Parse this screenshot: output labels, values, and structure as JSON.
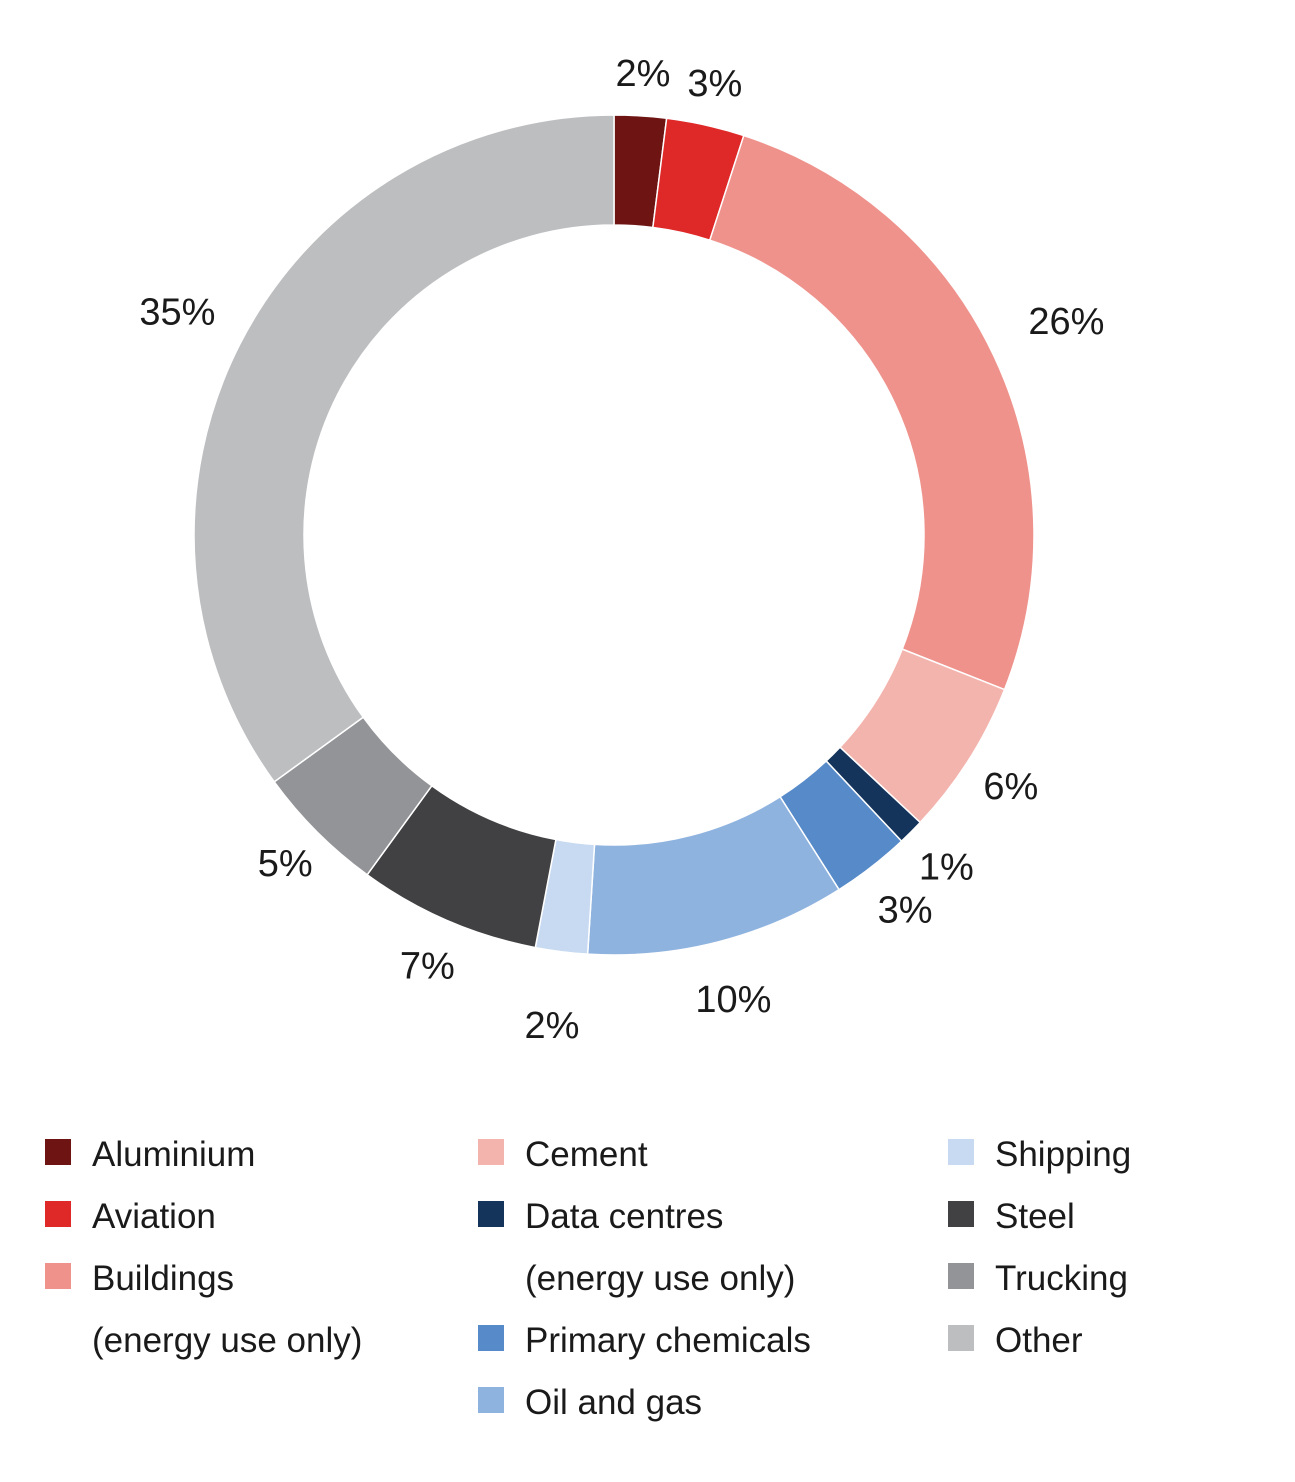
{
  "chart_data": {
    "type": "pie",
    "subtype": "donut",
    "title": "",
    "series": [
      {
        "name": "Aluminium",
        "value": 2,
        "label": "2%",
        "color": "#6e1413"
      },
      {
        "name": "Aviation",
        "value": 3,
        "label": "3%",
        "color": "#df2828"
      },
      {
        "name": "Buildings (energy use only)",
        "value": 26,
        "label": "26%",
        "color": "#ef928c"
      },
      {
        "name": "Cement",
        "value": 6,
        "label": "6%",
        "color": "#f4b4ae"
      },
      {
        "name": "Data centres (energy use only)",
        "value": 1,
        "label": "1%",
        "color": "#14345c"
      },
      {
        "name": "Primary chemicals",
        "value": 3,
        "label": "3%",
        "color": "#568ac8"
      },
      {
        "name": "Oil and gas",
        "value": 10,
        "label": "10%",
        "color": "#8fb3df"
      },
      {
        "name": "Shipping",
        "value": 2,
        "label": "2%",
        "color": "#c7daf1"
      },
      {
        "name": "Steel",
        "value": 7,
        "label": "7%",
        "color": "#414143"
      },
      {
        "name": "Trucking",
        "value": 5,
        "label": "5%",
        "color": "#939497"
      },
      {
        "name": "Other",
        "value": 35,
        "label": "35%",
        "color": "#bdbec0"
      }
    ],
    "legend_position": "bottom"
  },
  "legend": {
    "columns": [
      [
        {
          "lines": [
            "Aluminium"
          ],
          "color": "#6e1413"
        },
        {
          "lines": [
            "Aviation"
          ],
          "color": "#df2828"
        },
        {
          "lines": [
            "Buildings",
            "(energy use only)"
          ],
          "color": "#ef928c"
        }
      ],
      [
        {
          "lines": [
            "Cement"
          ],
          "color": "#f4b4ae"
        },
        {
          "lines": [
            "Data centres",
            "(energy use only)"
          ],
          "color": "#14345c"
        },
        {
          "lines": [
            "Primary chemicals"
          ],
          "color": "#568ac8"
        },
        {
          "lines": [
            "Oil and gas"
          ],
          "color": "#8fb3df"
        }
      ],
      [
        {
          "lines": [
            "Shipping"
          ],
          "color": "#c7daf1"
        },
        {
          "lines": [
            "Steel"
          ],
          "color": "#414143"
        },
        {
          "lines": [
            "Trucking"
          ],
          "color": "#939497"
        },
        {
          "lines": [
            "Other"
          ],
          "color": "#bdbec0"
        }
      ]
    ]
  }
}
